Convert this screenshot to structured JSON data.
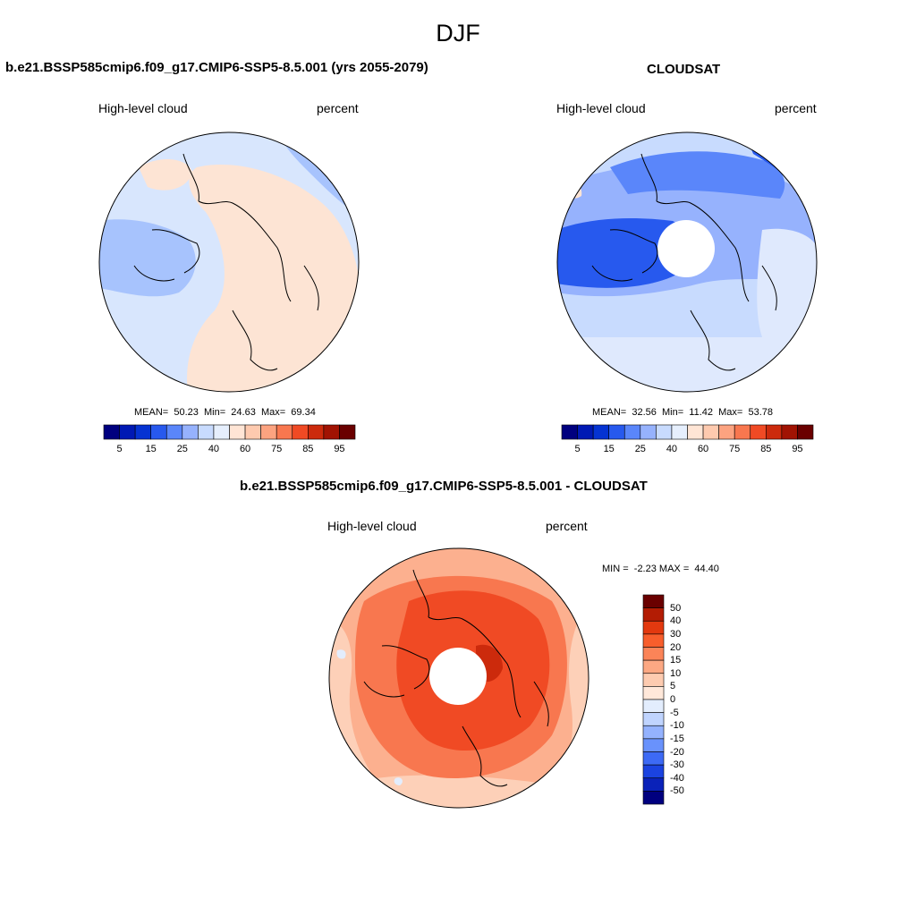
{
  "figure": {
    "season": "DJF"
  },
  "panels": {
    "model": {
      "title": "b.e21.BSSP585cmip6.f09_g17.CMIP6-SSP5-8.5.001 (yrs 2055-2079)",
      "left_label": "High-level cloud",
      "right_label": "percent",
      "stats": {
        "mean_label": "MEAN=",
        "mean": "50.23",
        "min_label": "Min=",
        "min": "24.63",
        "max_label": "Max=",
        "max": "69.34"
      }
    },
    "obs": {
      "title": "CLOUDSAT",
      "left_label": "High-level cloud",
      "right_label": "percent",
      "stats": {
        "mean_label": "MEAN=",
        "mean": "32.56",
        "min_label": "Min=",
        "min": "11.42",
        "max_label": "Max=",
        "max": "53.78"
      }
    },
    "diff": {
      "title": "b.e21.BSSP585cmip6.f09_g17.CMIP6-SSP5-8.5.001 - CLOUDSAT",
      "left_label": "High-level cloud",
      "right_label": "percent",
      "stats": {
        "min_label": "MIN =",
        "min": "-2.23",
        "max_label": "MAX =",
        "max": "44.40"
      }
    }
  },
  "colorbar_abs": {
    "colors": [
      "#00007f",
      "#0019b4",
      "#0533d2",
      "#2759ee",
      "#5a86fa",
      "#96b2fd",
      "#c8dbfe",
      "#e6effd",
      "#ffe5d5",
      "#fecaaf",
      "#fca380",
      "#f8774f",
      "#f04a24",
      "#cc2a0c",
      "#a11303",
      "#6a0000"
    ],
    "labels": [
      "5",
      "15",
      "25",
      "40",
      "60",
      "75",
      "85",
      "95"
    ]
  },
  "colorbar_diff": {
    "colors": [
      "#6a0000",
      "#b31c04",
      "#e3390f",
      "#f85e2c",
      "#fb8458",
      "#fca883",
      "#fdcbb0",
      "#ffe8da",
      "#e3edfd",
      "#c0d4fe",
      "#94b2fe",
      "#6992fc",
      "#3d6af5",
      "#1b43e0",
      "#0a22b9",
      "#00007f"
    ],
    "labels": [
      "50",
      "40",
      "30",
      "20",
      "15",
      "10",
      "5",
      "0",
      "-5",
      "-10",
      "-15",
      "-20",
      "-30",
      "-40",
      "-50"
    ]
  }
}
